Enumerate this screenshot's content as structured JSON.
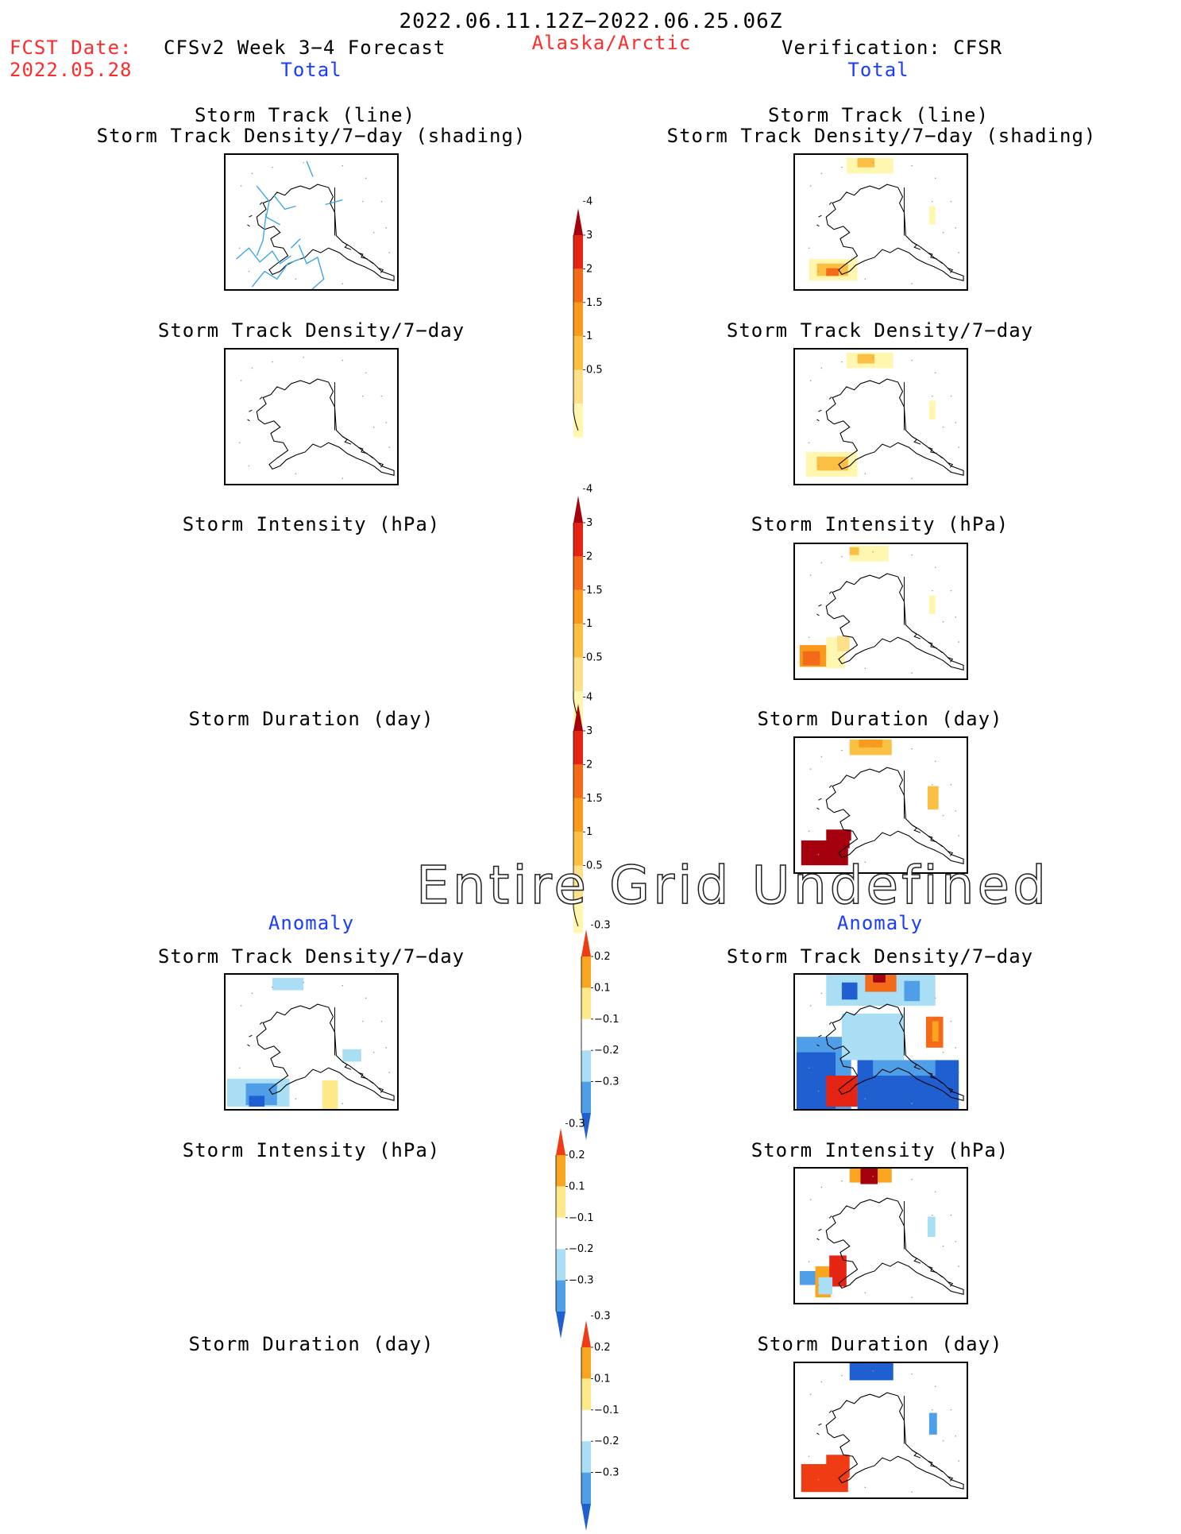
{
  "header": {
    "date_range": "2022.06.11.12Z−2022.06.25.06Z",
    "fcst_label": "FCST Date:",
    "fcst_date": "2022.05.28",
    "left_title": "CFSv2 Week 3−4 Forecast",
    "region": "Alaska/Arctic",
    "right_title": "Verification: CFSR",
    "total_left": "Total",
    "total_right": "Total",
    "anomaly_left": "Anomaly",
    "anomaly_right": "Anomaly"
  },
  "panels": {
    "track_line": "Storm Track (line)",
    "track_shading": "Storm Track Density/7−day (shading)",
    "density": "Storm Track Density/7−day",
    "intensity": "Storm Intensity (hPa)",
    "duration": "Storm Duration (day)"
  },
  "overlay_text": "Entire Grid Undefined",
  "colorbars": {
    "total_ticks": [
      "0.5",
      "1",
      "1.5",
      "2",
      "3",
      "4"
    ],
    "total_colors": [
      "#fff7b0",
      "#fde08a",
      "#fbc043",
      "#f99a1c",
      "#f36a18",
      "#e52414",
      "#a5000e"
    ],
    "anomaly_ticks": [
      "−0.3",
      "−0.2",
      "−0.1",
      "0.1",
      "0.2",
      "0.3"
    ],
    "anomaly_colors": [
      "#1f5fd0",
      "#4f9ee8",
      "#a9def5",
      "#ffffff",
      "#fde98a",
      "#f9a520",
      "#f03c14"
    ]
  },
  "chart_data": {
    "type": "heatmap",
    "title": "2022.06.11.12Z−2022.06.25.06Z",
    "region": "Alaska/Arctic",
    "forecast": "CFSv2 Week 3−4 Forecast",
    "verification": "CFSR",
    "fields": [
      "Storm Track (line)",
      "Storm Track Density/7−day",
      "Storm Intensity (hPa)",
      "Storm Duration (day)"
    ],
    "total_levels": [
      0.5,
      1,
      1.5,
      2,
      3,
      4
    ],
    "anomaly_levels": [
      -0.3,
      -0.2,
      -0.1,
      0.1,
      0.2,
      0.3
    ],
    "forecast_intensity_total": "Entire Grid Undefined",
    "forecast_duration_total": "Entire Grid Undefined"
  }
}
